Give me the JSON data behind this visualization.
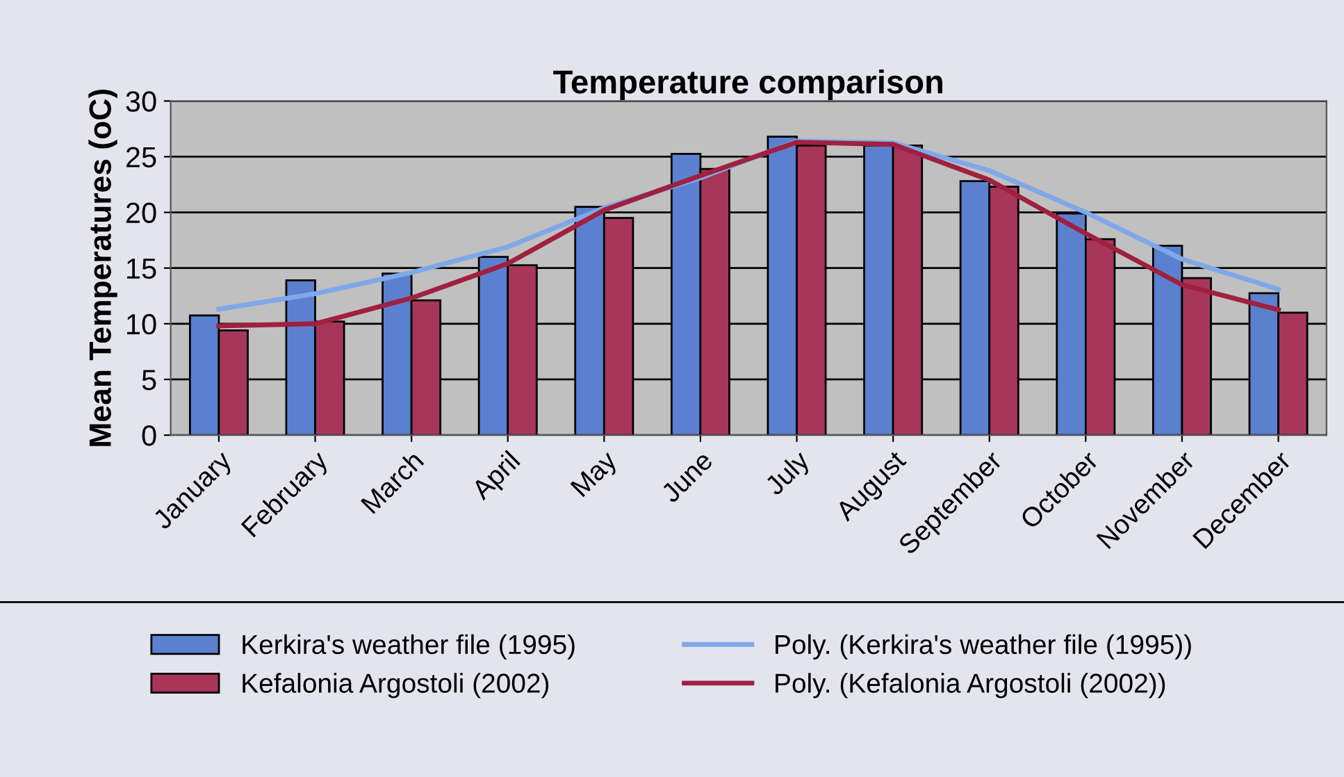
{
  "chart_data": {
    "type": "bar",
    "title": "Temperature comparison",
    "ylabel": "Mean Temperatures (oC)",
    "categories": [
      "January",
      "February",
      "March",
      "April",
      "May",
      "June",
      "July",
      "August",
      "September",
      "October",
      "November",
      "December"
    ],
    "series": [
      {
        "name": "Kerkira's weather file (1995)",
        "color": "#5b80d0",
        "values": [
          10.75,
          13.9,
          14.5,
          16.0,
          20.5,
          25.25,
          26.8,
          26.0,
          22.8,
          19.9,
          17.0,
          12.75
        ]
      },
      {
        "name": "Kefalonia Argostoli (2002)",
        "color": "#a8365a",
        "values": [
          9.4,
          10.2,
          12.1,
          15.25,
          19.5,
          23.9,
          26.0,
          26.0,
          22.3,
          17.6,
          14.1,
          11.0
        ]
      },
      {
        "name": "Poly. (Kerkira's weather file (1995))",
        "type": "line",
        "color": "#7fa8e8",
        "values": [
          11.3,
          12.7,
          14.6,
          16.9,
          20.4,
          23.1,
          26.4,
          26.25,
          23.75,
          20.0,
          15.8,
          13.1
        ]
      },
      {
        "name": "Poly. (Kefalonia Argostoli (2002))",
        "type": "line",
        "color": "#a02040",
        "values": [
          9.8,
          10.0,
          12.3,
          15.4,
          20.2,
          23.3,
          26.3,
          26.1,
          22.9,
          18.1,
          13.5,
          11.25
        ]
      }
    ],
    "ylim": [
      0,
      30
    ],
    "yticks": [
      0,
      5,
      10,
      15,
      20,
      25,
      30
    ],
    "grid": "y",
    "legend": "bottom"
  }
}
